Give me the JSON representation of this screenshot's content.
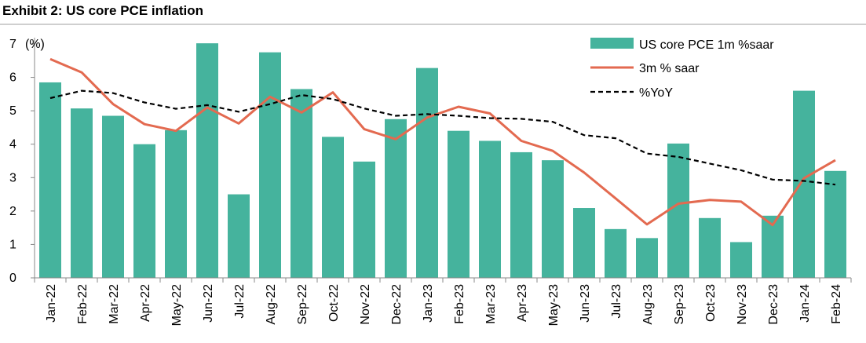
{
  "header": {
    "title": "Exhibit 2: US core PCE inflation"
  },
  "colors": {
    "bars": "#45b39d",
    "line": "#e36a50",
    "yoy": "#000000",
    "axis": "#888888"
  },
  "chart_data": {
    "type": "bar",
    "title": "",
    "xlabel": "",
    "ylabel": "(%)",
    "ylim": [
      0,
      7
    ],
    "yticks": [
      0,
      1,
      2,
      3,
      4,
      5,
      6,
      7
    ],
    "grid": false,
    "legend_position": "top-right",
    "categories": [
      "Jan-22",
      "Feb-22",
      "Mar-22",
      "Apr-22",
      "May-22",
      "Jun-22",
      "Jul-22",
      "Aug-22",
      "Sep-22",
      "Oct-22",
      "Nov-22",
      "Dec-22",
      "Jan-23",
      "Feb-23",
      "Mar-23",
      "Apr-23",
      "May-23",
      "Jun-23",
      "Jul-23",
      "Aug-23",
      "Sep-23",
      "Oct-23",
      "Nov-23",
      "Dec-23",
      "Jan-24",
      "Feb-24"
    ],
    "series": [
      {
        "name": "US core PCE 1m %saar",
        "type": "bar",
        "values": [
          5.85,
          5.07,
          4.85,
          4.0,
          4.42,
          7.02,
          2.5,
          6.75,
          5.65,
          4.22,
          3.48,
          4.75,
          6.28,
          4.4,
          4.1,
          3.76,
          3.52,
          2.09,
          1.46,
          1.19,
          4.02,
          1.79,
          1.07,
          1.86,
          5.6,
          3.2
        ]
      },
      {
        "name": "3m % saar",
        "type": "line",
        "values": [
          6.55,
          6.15,
          5.2,
          4.6,
          4.4,
          5.1,
          4.62,
          5.42,
          4.95,
          5.55,
          4.45,
          4.15,
          4.8,
          5.12,
          4.92,
          4.1,
          3.8,
          3.15,
          2.38,
          1.6,
          2.22,
          2.33,
          2.28,
          1.58,
          2.98,
          3.52
        ]
      },
      {
        "name": "%YoY",
        "type": "line",
        "values": [
          5.38,
          5.6,
          5.53,
          5.25,
          5.06,
          5.17,
          4.97,
          5.2,
          5.47,
          5.35,
          5.07,
          4.85,
          4.9,
          4.85,
          4.78,
          4.76,
          4.67,
          4.27,
          4.18,
          3.72,
          3.62,
          3.42,
          3.22,
          2.94,
          2.9,
          2.79
        ]
      }
    ]
  }
}
